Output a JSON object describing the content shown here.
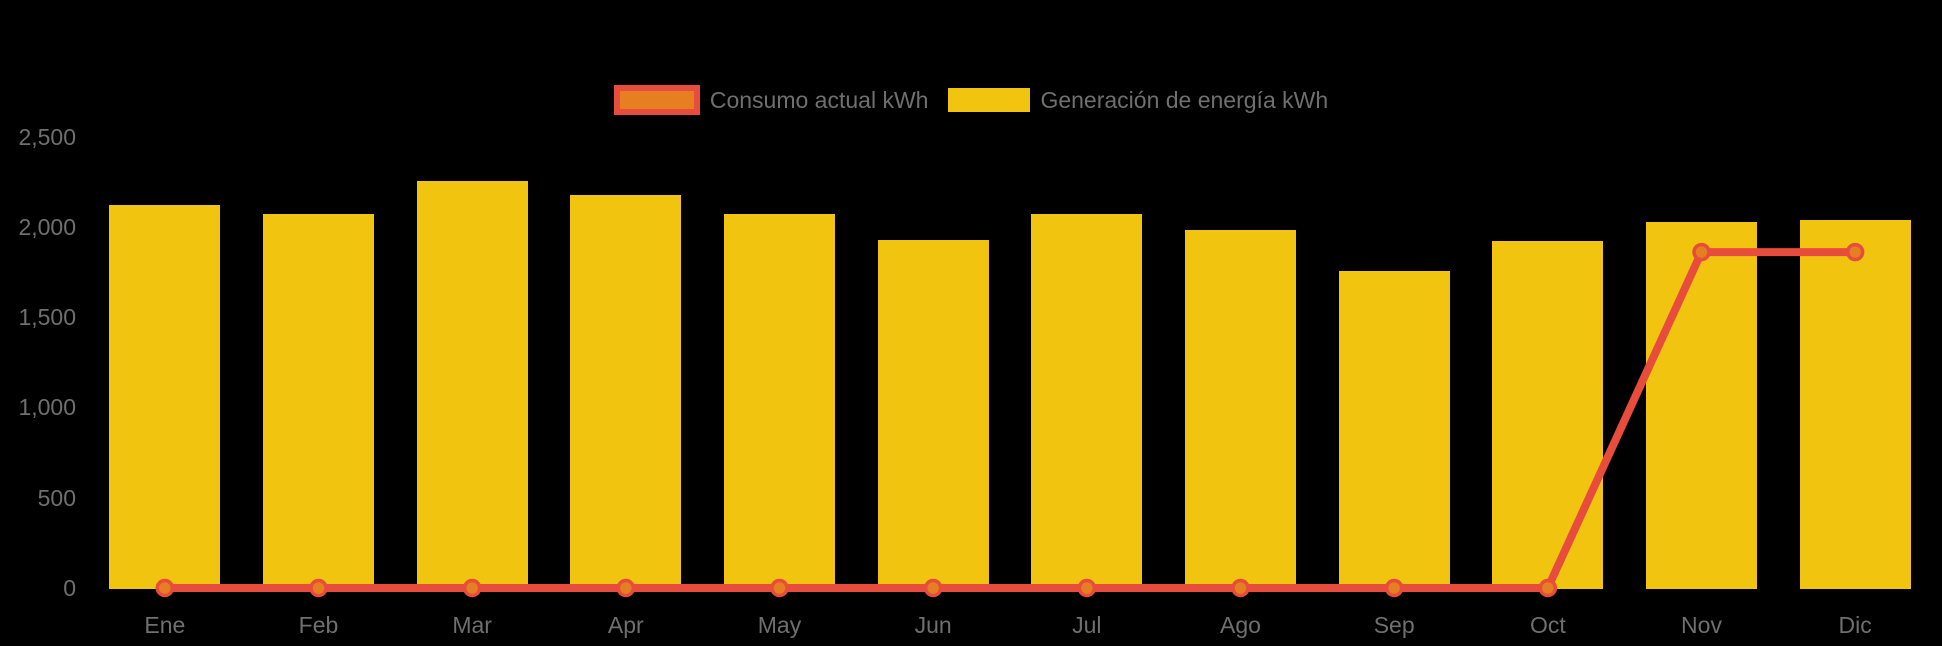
{
  "chart_data": {
    "type": "bar",
    "title": "",
    "categories": [
      "Ene",
      "Feb",
      "Mar",
      "Apr",
      "May",
      "Jun",
      "Jul",
      "Ago",
      "Sep",
      "Oct",
      "Nov",
      "Dic"
    ],
    "series": [
      {
        "name": "Consumo actual kWh",
        "kind": "line",
        "color": "#e74c3c",
        "marker_fill": "#e67e22",
        "values": [
          0,
          0,
          0,
          0,
          0,
          0,
          0,
          0,
          0,
          0,
          1860,
          1860
        ]
      },
      {
        "name": "Generación de energía kWh",
        "kind": "bar",
        "color": "#f1c40f",
        "values": [
          2120,
          2070,
          2255,
          2175,
          2070,
          1925,
          2070,
          1980,
          1755,
          1920,
          2025,
          2040
        ]
      }
    ],
    "xlabel": "",
    "ylabel": "",
    "ylim": [
      0,
      2500
    ],
    "ytick_step": 500,
    "ytick_labels": [
      "0",
      "500",
      "1,000",
      "1,500",
      "2,000",
      "2,500"
    ],
    "grid": false,
    "legend_position": "top-center",
    "background_color": "#000000",
    "axis_label_color": "#6f6f6f"
  },
  "legend": {
    "items": [
      {
        "label": "Consumo actual kWh"
      },
      {
        "label": "Generación de energía kWh"
      }
    ]
  }
}
